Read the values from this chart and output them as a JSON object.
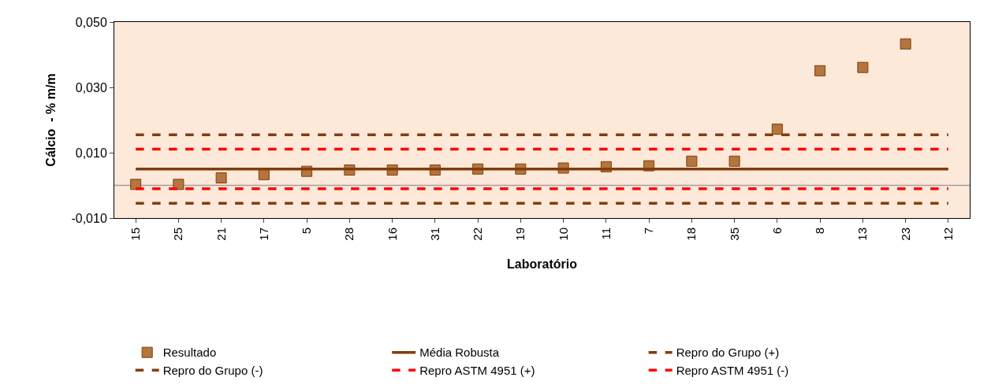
{
  "chart_data": {
    "type": "scatter",
    "xlabel": "Laboratório",
    "ylabel": "Cálcio  - % m/m",
    "categories": [
      "15",
      "25",
      "21",
      "17",
      "5",
      "28",
      "16",
      "31",
      "22",
      "19",
      "10",
      "11",
      "7",
      "18",
      "35",
      "6",
      "8",
      "13",
      "23",
      "12"
    ],
    "ylim": [
      -0.01,
      0.05
    ],
    "yticks": [
      {
        "value": -0.01,
        "label": "-0,010"
      },
      {
        "value": 0.01,
        "label": "0,010"
      },
      {
        "value": 0.03,
        "label": "0,030"
      },
      {
        "value": 0.05,
        "label": "0,050"
      }
    ],
    "grid": false,
    "legend": "bottom",
    "ref_lines": [
      {
        "axis": "y",
        "value": 0,
        "color": "#a0a0a0"
      }
    ],
    "series": [
      {
        "name": "Resultado",
        "marker": "square",
        "color": "#b5753f",
        "values": [
          0.0003,
          0.0003,
          0.0023,
          0.0033,
          0.0043,
          0.0047,
          0.0047,
          0.0047,
          0.005,
          0.005,
          0.0053,
          0.0057,
          0.006,
          0.0074,
          0.0074,
          0.0172,
          0.0351,
          0.0361,
          0.0433,
          null
        ]
      },
      {
        "name": "Média Robusta",
        "type": "line",
        "line_style": "solid",
        "color": "#843c0c",
        "values": [
          0.005,
          0.005,
          0.005,
          0.005,
          0.005,
          0.005,
          0.005,
          0.005,
          0.005,
          0.005,
          0.005,
          0.005,
          0.005,
          0.005,
          0.005,
          0.005,
          0.005,
          0.005,
          0.005,
          0.005
        ]
      },
      {
        "name": "Repro do Grupo (+)",
        "type": "line",
        "line_style": "dashed",
        "color": "#843c0c",
        "values": [
          0.0155,
          0.0155,
          0.0155,
          0.0155,
          0.0155,
          0.0155,
          0.0155,
          0.0155,
          0.0155,
          0.0155,
          0.0155,
          0.0155,
          0.0155,
          0.0155,
          0.0155,
          0.0155,
          0.0155,
          0.0155,
          0.0155,
          0.0155
        ]
      },
      {
        "name": "Repro do Grupo (-)",
        "type": "line",
        "line_style": "dashed",
        "color": "#843c0c",
        "values": [
          -0.0055,
          -0.0055,
          -0.0055,
          -0.0055,
          -0.0055,
          -0.0055,
          -0.0055,
          -0.0055,
          -0.0055,
          -0.0055,
          -0.0055,
          -0.0055,
          -0.0055,
          -0.0055,
          -0.0055,
          -0.0055,
          -0.0055,
          -0.0055,
          -0.0055,
          -0.0055
        ]
      },
      {
        "name": "Repro ASTM 4951 (+)",
        "type": "line",
        "line_style": "dashed",
        "color": "#ff0000",
        "values": [
          0.0111,
          0.0111,
          0.0111,
          0.0111,
          0.0111,
          0.0111,
          0.0111,
          0.0111,
          0.0111,
          0.0111,
          0.0111,
          0.0111,
          0.0111,
          0.0111,
          0.0111,
          0.0111,
          0.0111,
          0.0111,
          0.0111,
          0.0111
        ]
      },
      {
        "name": "Repro ASTM 4951 (-)",
        "type": "line",
        "line_style": "dashed",
        "color": "#ff0000",
        "values": [
          -0.001,
          -0.001,
          -0.001,
          -0.001,
          -0.001,
          -0.001,
          -0.001,
          -0.001,
          -0.001,
          -0.001,
          -0.001,
          -0.001,
          -0.001,
          -0.001,
          -0.001,
          -0.001,
          -0.001,
          -0.001,
          -0.001,
          -0.001
        ]
      }
    ]
  }
}
